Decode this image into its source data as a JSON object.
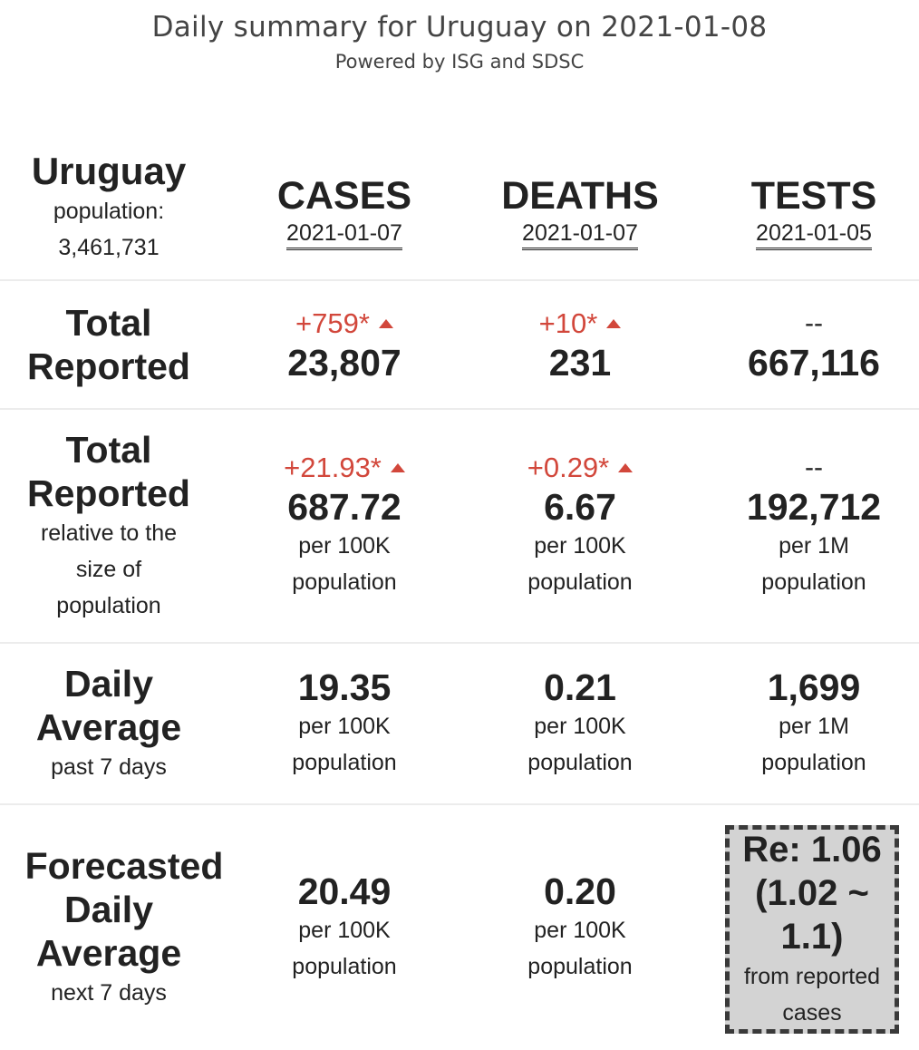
{
  "header": {
    "title": "Daily summary for Uruguay on 2021-01-08",
    "subtitle": "Powered by ISG and SDSC"
  },
  "country": {
    "name": "Uruguay",
    "population_label": "population:",
    "population": "3,461,731"
  },
  "columns": [
    {
      "name": "CASES",
      "date": "2021-01-07"
    },
    {
      "name": "DEATHS",
      "date": "2021-01-07"
    },
    {
      "name": "TESTS",
      "date": "2021-01-05"
    }
  ],
  "total_reported": {
    "label_line1": "Total",
    "label_line2": "Reported",
    "cases": {
      "delta": "+759*",
      "value": "23,807"
    },
    "deaths": {
      "delta": "+10*",
      "value": "231"
    },
    "tests": {
      "delta": "--",
      "value": "667,116"
    }
  },
  "relative": {
    "label_line1": "Total",
    "label_line2": "Reported",
    "label_sub": [
      "relative to the",
      "size of",
      "population"
    ],
    "cases": {
      "delta": "+21.93*",
      "value": "687.72",
      "unit_line1": "per 100K",
      "unit_line2": "population"
    },
    "deaths": {
      "delta": "+0.29*",
      "value": "6.67",
      "unit_line1": "per 100K",
      "unit_line2": "population"
    },
    "tests": {
      "delta": "--",
      "value": "192,712",
      "unit_line1": "per 1M",
      "unit_line2": "population"
    }
  },
  "daily_average": {
    "label_line1": "Daily",
    "label_line2": "Average",
    "label_sub": "past 7 days",
    "cases": {
      "value": "19.35",
      "unit_line1": "per 100K",
      "unit_line2": "population"
    },
    "deaths": {
      "value": "0.21",
      "unit_line1": "per 100K",
      "unit_line2": "population"
    },
    "tests": {
      "value": "1,699",
      "unit_line1": "per 1M",
      "unit_line2": "population"
    }
  },
  "forecast": {
    "label_line1": "Forecasted",
    "label_line2": "Daily",
    "label_line3": "Average",
    "label_sub": "next 7 days",
    "cases": {
      "value": "20.49",
      "unit_line1": "per 100K",
      "unit_line2": "population"
    },
    "deaths": {
      "value": "0.20",
      "unit_line1": "per 100K",
      "unit_line2": "population"
    },
    "re": {
      "line1": "Re: 1.06",
      "line2": "(1.02 ~",
      "line3": "1.1)",
      "note_line1": "from reported",
      "note_line2": "cases"
    }
  },
  "colors": {
    "increase": "#d2473b",
    "re_box_bg": "#d3d3d3",
    "re_box_border": "#3a3a3a"
  },
  "icons": {
    "increase": "triangle-up-icon"
  }
}
